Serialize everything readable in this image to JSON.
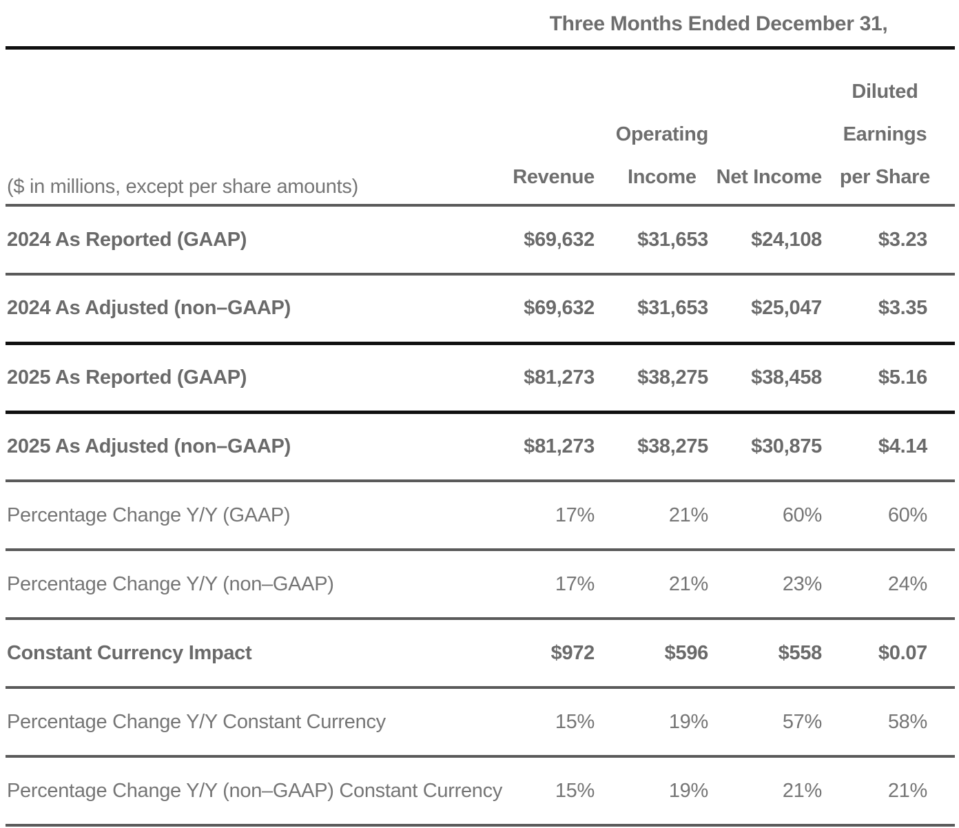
{
  "table": {
    "period_header": "Three Months Ended December 31,",
    "row_label_header": "($ in millions, except per share amounts)",
    "columns": [
      {
        "lines": [
          "Revenue"
        ]
      },
      {
        "lines": [
          "Operating",
          "Income"
        ]
      },
      {
        "lines": [
          "Net Income"
        ]
      },
      {
        "lines": [
          "Diluted",
          "Earnings",
          "per Share"
        ]
      }
    ],
    "rows": [
      {
        "label": "2024 As Reported (GAAP)",
        "values": [
          "$69,632",
          "$31,653",
          "$24,108",
          "$3.23"
        ]
      },
      {
        "label": "2024 As Adjusted (non–GAAP)",
        "values": [
          "$69,632",
          "$31,653",
          "$25,047",
          "$3.35"
        ]
      },
      {
        "label": "2025 As Reported (GAAP)",
        "values": [
          "$81,273",
          "$38,275",
          "$38,458",
          "$5.16"
        ]
      },
      {
        "label": "2025 As Adjusted (non–GAAP)",
        "values": [
          "$81,273",
          "$38,275",
          "$30,875",
          "$4.14"
        ]
      },
      {
        "label": "Percentage Change Y/Y (GAAP)",
        "values": [
          "17%",
          "21%",
          "60%",
          "60%"
        ]
      },
      {
        "label": "Percentage Change Y/Y (non–GAAP)",
        "values": [
          "17%",
          "21%",
          "23%",
          "24%"
        ]
      },
      {
        "label": "Constant Currency Impact",
        "values": [
          "$972",
          "$596",
          "$558",
          "$0.07"
        ]
      },
      {
        "label": "Percentage Change Y/Y Constant Currency",
        "values": [
          "15%",
          "19%",
          "57%",
          "58%"
        ]
      },
      {
        "label": "Percentage Change Y/Y (non–GAAP) Constant Currency",
        "values": [
          "15%",
          "19%",
          "21%",
          "21%"
        ]
      }
    ],
    "colors": {
      "text_gray": "#6e6e6e",
      "rule_gray": "#5a5a5a",
      "rule_black": "#101010",
      "background": "#ffffff"
    }
  }
}
